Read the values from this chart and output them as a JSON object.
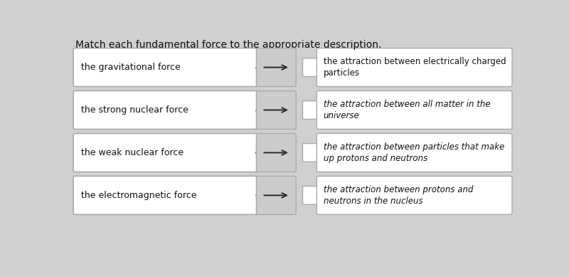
{
  "title": "Match each fundamental force to the appropriate description.",
  "title_fontsize": 10,
  "bg_color": "#d0d0d0",
  "left_items": [
    "the gravitational force",
    "the strong nuclear force",
    "the weak nuclear force",
    "the electromagnetic force"
  ],
  "right_items": [
    "the attraction between electrically charged\nparticles",
    "the attraction between all matter in the\nuniverse",
    "the attraction between particles that make\nup protons and neutrons",
    "the attraction between protons and\nneutrons in the nucleus"
  ],
  "arrow_colors": [
    "#4a90d9",
    "#7cb342",
    "#3f51b5",
    "#e69900"
  ],
  "box_border": "#aaaaaa",
  "text_color": "#111111",
  "right_box_italic": [
    false,
    true,
    true,
    true
  ]
}
